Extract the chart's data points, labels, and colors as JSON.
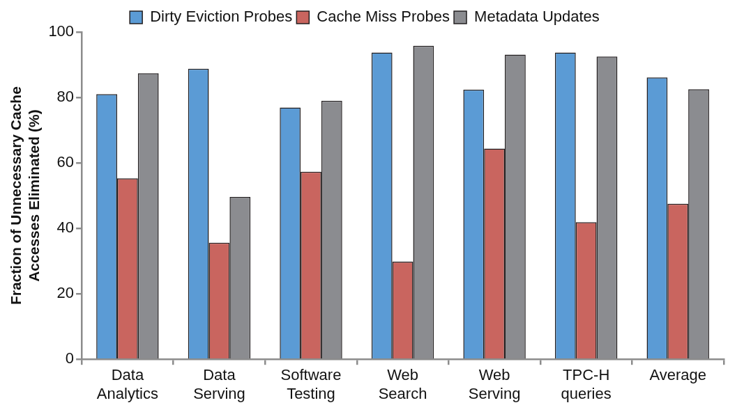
{
  "chart_data": {
    "type": "bar",
    "ylabel": "Fraction of Unnecessary Cache Accesses Eliminated (%)",
    "categories": [
      "Data Analytics",
      "Data Serving",
      "Software Testing",
      "Web Search",
      "Web Serving",
      "TPC-H queries",
      "Average"
    ],
    "series": [
      {
        "name": "Dirty Eviction Probes",
        "color": "#5b9bd5",
        "values": [
          81.0,
          88.8,
          76.9,
          93.7,
          82.4,
          93.7,
          86.1
        ]
      },
      {
        "name": "Cache Miss Probes",
        "color": "#c9655f",
        "values": [
          55.3,
          35.6,
          57.3,
          29.8,
          64.4,
          41.9,
          47.5
        ]
      },
      {
        "name": "Metadata Updates",
        "color": "#8b8c90",
        "values": [
          87.4,
          49.6,
          79.0,
          95.8,
          93.1,
          92.5,
          82.5
        ]
      }
    ],
    "ylim": [
      0,
      100
    ],
    "yticks": [
      0,
      20,
      40,
      60,
      80,
      100
    ],
    "grid": false,
    "legend": "top"
  }
}
